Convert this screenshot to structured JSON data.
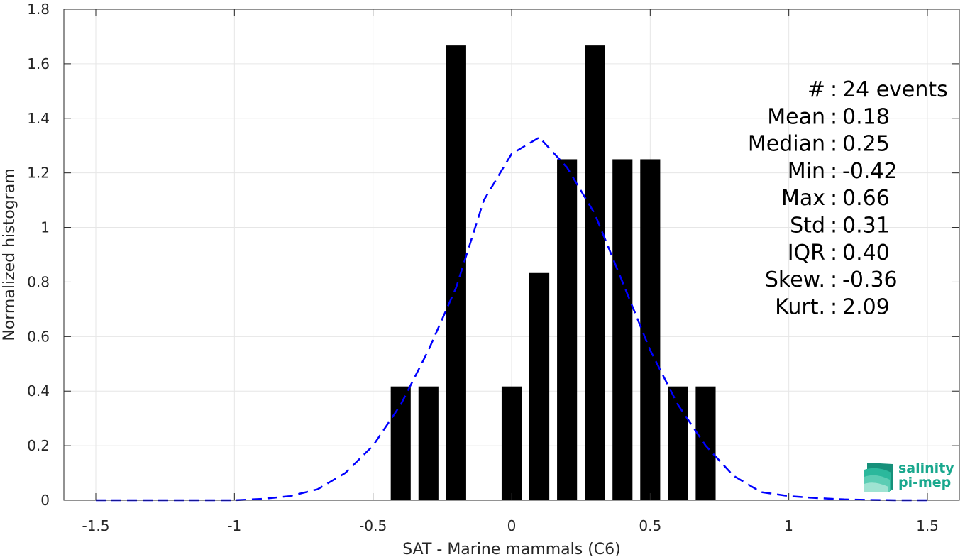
{
  "chart_data": {
    "type": "bar",
    "xlabel": "SAT - Marine mammals (C6)",
    "ylabel": "Normalized histogram",
    "xlim": [
      -1.5,
      1.5
    ],
    "ylim": [
      0,
      1.8
    ],
    "xticks": [
      "-1.5",
      "-1",
      "-0.5",
      "0",
      "0.5",
      "1",
      "1.5"
    ],
    "yticks": [
      "0",
      "0.2",
      "0.4",
      "0.6",
      "0.8",
      "1",
      "1.2",
      "1.4",
      "1.6",
      "1.8"
    ],
    "grid": true,
    "bars": {
      "x": [
        -0.4,
        -0.3,
        -0.2,
        0.0,
        0.1,
        0.2,
        0.3,
        0.4,
        0.5,
        0.6,
        0.7
      ],
      "values": [
        0.417,
        0.417,
        1.667,
        0.417,
        0.833,
        1.25,
        1.667,
        1.25,
        1.25,
        0.417,
        0.417
      ],
      "color": "#000000"
    },
    "series": [
      {
        "style": "dashed",
        "color": "#0000ff",
        "x": [
          -1.5,
          -1.4,
          -1.3,
          -1.2,
          -1.1,
          -1.0,
          -0.9,
          -0.8,
          -0.7,
          -0.6,
          -0.5,
          -0.4,
          -0.3,
          -0.2,
          -0.1,
          0.0,
          0.1,
          0.2,
          0.3,
          0.4,
          0.5,
          0.6,
          0.7,
          0.8,
          0.9,
          1.0,
          1.1,
          1.2,
          1.3,
          1.4,
          1.5
        ],
        "y": [
          0.0,
          0.0,
          0.0,
          0.0,
          0.0,
          0.0,
          0.005,
          0.015,
          0.04,
          0.1,
          0.2,
          0.35,
          0.55,
          0.78,
          1.1,
          1.27,
          1.33,
          1.22,
          1.05,
          0.8,
          0.55,
          0.35,
          0.2,
          0.09,
          0.03,
          0.015,
          0.008,
          0.003,
          0.001,
          0.0,
          0.0
        ]
      }
    ],
    "annotations": [
      {
        "label": "#",
        "sep": ":",
        "value": "24 events"
      },
      {
        "label": "Mean",
        "sep": ":",
        "value": "0.18"
      },
      {
        "label": "Median",
        "sep": ":",
        "value": "0.25"
      },
      {
        "label": "Min",
        "sep": ":",
        "value": "-0.42"
      },
      {
        "label": "Max",
        "sep": ":",
        "value": "0.66"
      },
      {
        "label": "Std",
        "sep": ":",
        "value": "0.31"
      },
      {
        "label": "IQR",
        "sep": ":",
        "value": "0.40"
      },
      {
        "label": "Skew.",
        "sep": ":",
        "value": "-0.36"
      },
      {
        "label": "Kurt.",
        "sep": ":",
        "value": "2.09"
      }
    ]
  },
  "logo": {
    "line1": "salinity",
    "line2": "pi-mep"
  }
}
